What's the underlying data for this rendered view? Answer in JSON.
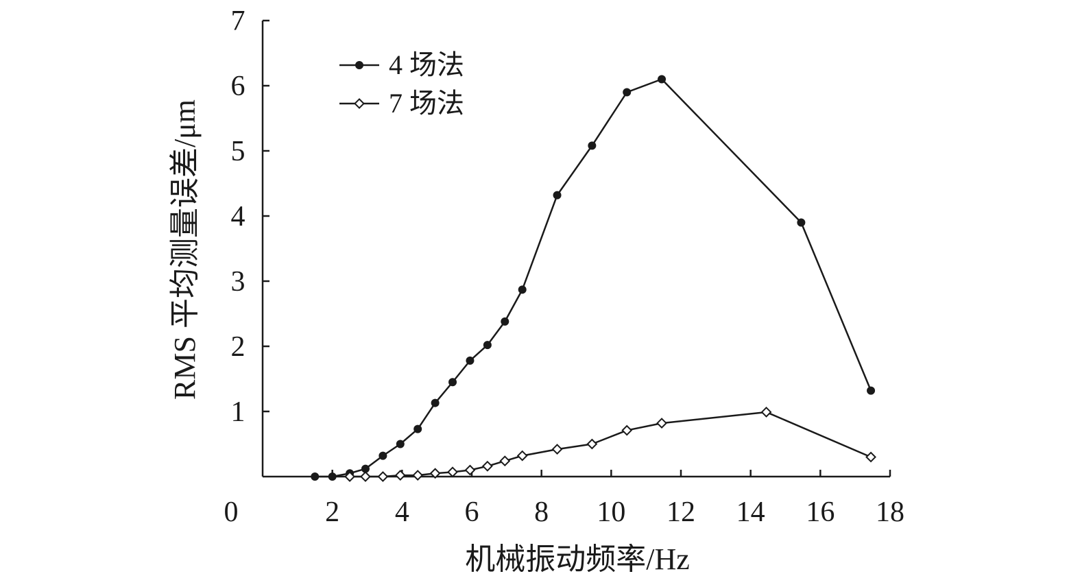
{
  "chart_data": {
    "type": "line",
    "title": "",
    "xlabel": "机械振动频率/Hz",
    "ylabel": "RMS 平均测量误差/μm",
    "xlim": [
      0,
      18
    ],
    "ylim": [
      0,
      7
    ],
    "x_ticks": [
      2,
      4,
      6,
      8,
      10,
      12,
      14,
      16,
      18
    ],
    "y_ticks": [
      1,
      2,
      3,
      4,
      5,
      6,
      7
    ],
    "origin_label": "0",
    "grid": false,
    "legend_position": "top-left",
    "series": [
      {
        "name": "4 场法",
        "marker": "filled-circle",
        "color": "#1a1a1a",
        "points": [
          {
            "x": 1.5,
            "y": 0.0
          },
          {
            "x": 2.0,
            "y": 0.0
          },
          {
            "x": 2.5,
            "y": 0.05
          },
          {
            "x": 2.95,
            "y": 0.12
          },
          {
            "x": 3.45,
            "y": 0.32
          },
          {
            "x": 3.95,
            "y": 0.5
          },
          {
            "x": 4.45,
            "y": 0.73
          },
          {
            "x": 4.95,
            "y": 1.13
          },
          {
            "x": 5.45,
            "y": 1.45
          },
          {
            "x": 5.95,
            "y": 1.78
          },
          {
            "x": 6.45,
            "y": 2.02
          },
          {
            "x": 6.95,
            "y": 2.38
          },
          {
            "x": 7.45,
            "y": 2.87
          },
          {
            "x": 8.45,
            "y": 4.32
          },
          {
            "x": 9.45,
            "y": 5.08
          },
          {
            "x": 10.45,
            "y": 5.9
          },
          {
            "x": 11.45,
            "y": 6.1
          },
          {
            "x": 15.45,
            "y": 3.9
          },
          {
            "x": 17.45,
            "y": 1.32
          }
        ]
      },
      {
        "name": "7 场法",
        "marker": "open-diamond",
        "color": "#1a1a1a",
        "points": [
          {
            "x": 2.5,
            "y": 0.0
          },
          {
            "x": 2.95,
            "y": 0.0
          },
          {
            "x": 3.45,
            "y": 0.0
          },
          {
            "x": 3.95,
            "y": 0.02
          },
          {
            "x": 4.45,
            "y": 0.02
          },
          {
            "x": 4.95,
            "y": 0.05
          },
          {
            "x": 5.45,
            "y": 0.07
          },
          {
            "x": 5.95,
            "y": 0.1
          },
          {
            "x": 6.45,
            "y": 0.16
          },
          {
            "x": 6.95,
            "y": 0.24
          },
          {
            "x": 7.45,
            "y": 0.32
          },
          {
            "x": 8.45,
            "y": 0.42
          },
          {
            "x": 9.45,
            "y": 0.5
          },
          {
            "x": 10.45,
            "y": 0.71
          },
          {
            "x": 11.45,
            "y": 0.82
          },
          {
            "x": 14.45,
            "y": 0.99
          },
          {
            "x": 17.45,
            "y": 0.3
          }
        ]
      }
    ]
  }
}
